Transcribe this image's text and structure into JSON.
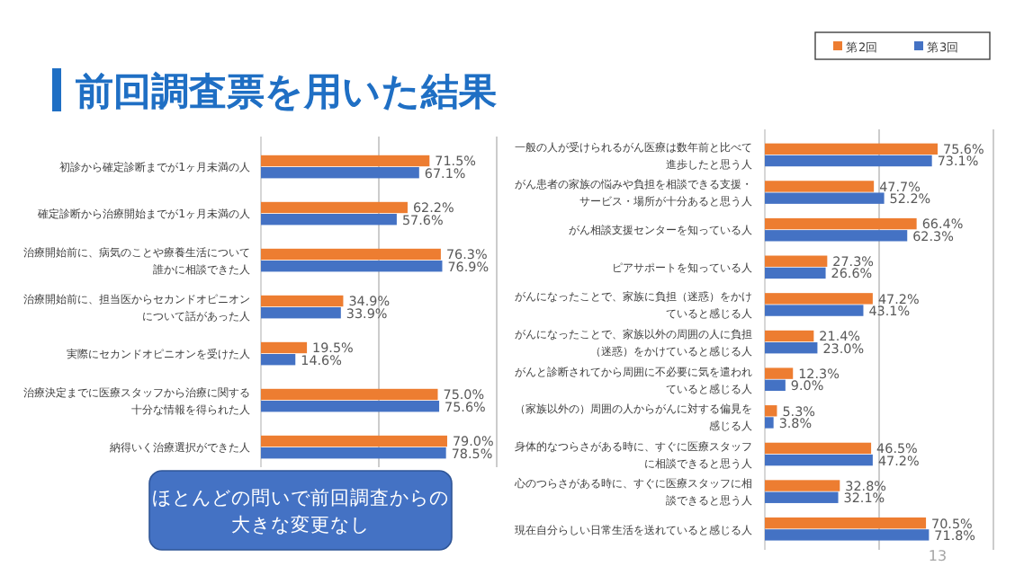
{
  "chart_data": [
    {
      "type": "bar",
      "orientation": "horizontal",
      "title": "前回調査票を用いた結果",
      "categories": [
        "初診から確定診断までが1ヶ月未満の人",
        "確定診断から治療開始までが1ヶ月未満の人",
        "治療開始前に、病気のことや療養生活について誰かに相談できた人",
        "治療開始前に、担当医からセカンドオピニオンについて話があった人",
        "実際にセカンドオピニオンを受けた人",
        "治療決定までに医療スタッフから治療に関する十分な情報を得られた人",
        "納得いく治療選択ができた人"
      ],
      "series": [
        {
          "color": "#ed7d31",
          "values": [
            71.5,
            62.2,
            76.3,
            34.9,
            19.5,
            75.0,
            79.0
          ],
          "value_labels": [
            "71.5%",
            "62.2%",
            "76.3%",
            "34.9%",
            "19.5%",
            "75.0%",
            "79.0%"
          ]
        },
        {
          "color": "#4472c4",
          "values": [
            67.1,
            57.6,
            76.9,
            33.9,
            14.6,
            75.6,
            78.5
          ],
          "value_labels": [
            "67.1%",
            "57.6%",
            "76.9%",
            "33.9%",
            "14.6%",
            "75.6%",
            "78.5%"
          ]
        }
      ],
      "xlim": [
        0,
        100
      ],
      "xticks": [
        {
          "value": 0,
          "label": null
        },
        {
          "value": 50,
          "label": null
        },
        {
          "value": 100,
          "label": null
        }
      ],
      "grid": "x",
      "tick_labels": "y",
      "legend": false,
      "annotations": [
        "ほとんどの問いで前回調査からの大きな変更なし"
      ]
    },
    {
      "type": "bar",
      "orientation": "horizontal",
      "categories": [
        "一般の人が受けられるがん医療は数年前と比べて進歩したと思う人",
        "がん患者の家族の悩みや負担を相談できる支援・サービス・場所が十分あると思う人",
        "がん相談支援センターを知っている人",
        "ピアサポートを知っている人",
        "がんになったことで、家族に負担（迷惑）をかけていると感じる人",
        "がんになったことで、家族以外の周囲の人に負担（迷惑）をかけていると感じる人",
        "がんと診断されてから周囲に不必要に気を遣われていると感じる人",
        "（家族以外の）周囲の人からがんに対する偏見を感じる人",
        "身体的なつらさがある時に、すぐに医療スタッフに相談できると思う人",
        "心のつらさがある時に、すぐに医療スタッフに相談できると思う人",
        "現在自分らしい日常生活を送れていると感じる人"
      ],
      "series": [
        {
          "name": "第2回",
          "color": "#ed7d31",
          "values": [
            75.6,
            47.7,
            66.4,
            27.3,
            47.2,
            21.4,
            12.3,
            5.3,
            46.5,
            32.8,
            70.5
          ],
          "value_labels": [
            "75.6%",
            "47.7%",
            "66.4%",
            "27.3%",
            "47.2%",
            "21.4%",
            "12.3%",
            "5.3%",
            "46.5%",
            "32.8%",
            "70.5%"
          ]
        },
        {
          "name": "第3回",
          "color": "#4472c4",
          "values": [
            73.1,
            52.2,
            62.3,
            26.6,
            43.1,
            23.0,
            9.0,
            3.8,
            47.2,
            32.1,
            71.8
          ],
          "value_labels": [
            "73.1%",
            "52.2%",
            "62.3%",
            "26.6%",
            "43.1%",
            "23.0%",
            "9.0%",
            "3.8%",
            "47.2%",
            "32.1%",
            "71.8%"
          ]
        }
      ],
      "xlim": [
        0,
        100
      ],
      "xticks": [
        {
          "value": 0,
          "label": null
        },
        {
          "value": 50,
          "label": null
        },
        {
          "value": 100,
          "label": null
        }
      ],
      "grid": "x",
      "tick_labels": "y",
      "legend": "top right",
      "annotations": [
        "13"
      ]
    }
  ]
}
